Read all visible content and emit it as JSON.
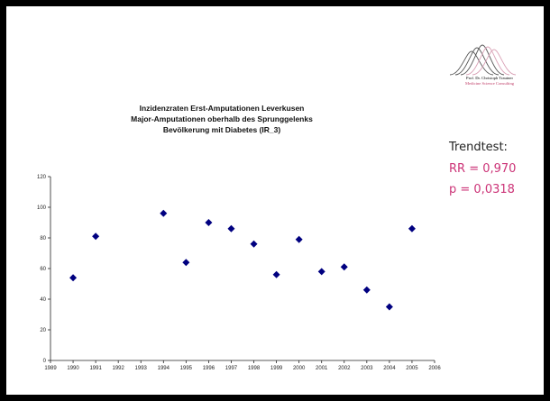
{
  "chart_data": {
    "type": "scatter",
    "title_lines": [
      "Inzidenzraten Erst-Amputationen Leverkusen",
      "Major-Amputationen oberhalb des Sprunggelenks",
      "Bevölkerung mit Diabetes (IR_3)"
    ],
    "xlabel": "",
    "ylabel": "",
    "xlim": [
      1989,
      2006
    ],
    "ylim": [
      0,
      120
    ],
    "x_ticks": [
      1989,
      1990,
      1991,
      1992,
      1993,
      1994,
      1995,
      1996,
      1997,
      1998,
      1999,
      2000,
      2001,
      2002,
      2003,
      2004,
      2005,
      2006
    ],
    "y_ticks": [
      0,
      20,
      40,
      60,
      80,
      100,
      120
    ],
    "grid": false,
    "legend": "none",
    "marker_color": "#000080",
    "points": [
      {
        "x": 1990,
        "y": 54
      },
      {
        "x": 1991,
        "y": 81
      },
      {
        "x": 1994,
        "y": 96
      },
      {
        "x": 1995,
        "y": 64
      },
      {
        "x": 1996,
        "y": 90
      },
      {
        "x": 1997,
        "y": 86
      },
      {
        "x": 1998,
        "y": 76
      },
      {
        "x": 1999,
        "y": 56
      },
      {
        "x": 2000,
        "y": 79
      },
      {
        "x": 2001,
        "y": 58
      },
      {
        "x": 2002,
        "y": 61
      },
      {
        "x": 2003,
        "y": 46
      },
      {
        "x": 2004,
        "y": 35
      },
      {
        "x": 2005,
        "y": 86
      }
    ]
  },
  "logo": {
    "line1": "Prof. Dr. Christoph Trautner",
    "line2": "Medicine Science Consulting",
    "line2_color": "#c0406a",
    "curve_dark": "#555555",
    "curve_pink": "#d9a0b5"
  },
  "trend": {
    "label": "Trendtest:",
    "rr": "RR = 0,970",
    "p": "p = 0,0318",
    "value_color": "#cc3377"
  }
}
